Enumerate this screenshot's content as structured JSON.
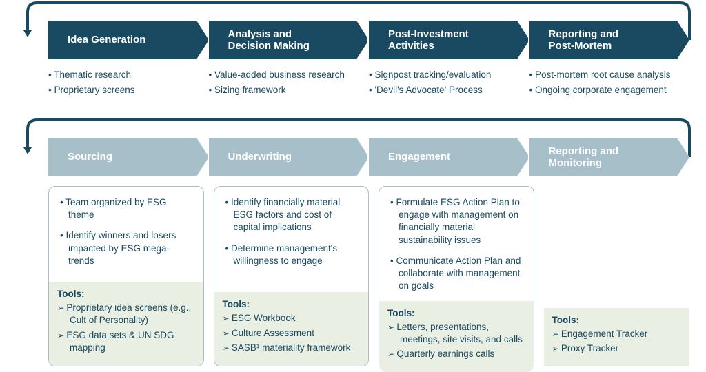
{
  "colors": {
    "dark_chevron": "#1a4a61",
    "light_chevron": "#a7bfc9",
    "text": "#1a4a61",
    "tools_bg": "#e9efe3",
    "page_bg": "#ffffff"
  },
  "row1": {
    "stages": [
      {
        "label": "Idea Generation",
        "bullets": [
          "Thematic research",
          "Proprietary screens"
        ]
      },
      {
        "label": "Analysis and\nDecision Making",
        "bullets": [
          "Value-added business research",
          "Sizing framework"
        ]
      },
      {
        "label": "Post-Investment\nActivities",
        "bullets": [
          "Signpost tracking/evaluation",
          "'Devil's Advocate' Process"
        ]
      },
      {
        "label": "Reporting and\nPost-Mortem",
        "bullets": [
          "Post-mortem root cause analysis",
          "Ongoing corporate engagement"
        ]
      }
    ]
  },
  "row2": {
    "stages": [
      {
        "label": "Sourcing",
        "card_border": true,
        "bullets": [
          "Team organized by ESG theme",
          "Identify winners and losers impacted by ESG mega-trends"
        ],
        "tools": [
          "Proprietary idea screens (e.g., Cult of Personality)",
          "ESG data sets & UN SDG mapping"
        ]
      },
      {
        "label": "Underwriting",
        "card_border": true,
        "bullets": [
          "Identify financially material ESG factors and cost of capital implications",
          "Determine management's willingness to engage"
        ],
        "tools": [
          "ESG Workbook",
          "Culture Assessment",
          "SASB¹ materiality framework"
        ]
      },
      {
        "label": "Engagement",
        "card_border": true,
        "bullets": [
          "Formulate ESG Action Plan to engage with management on financially material sustainability issues",
          "Communicate Action Plan and collaborate with management on goals"
        ],
        "tools": [
          "Letters, presentations, meetings, site visits, and calls",
          "Quarterly earnings calls"
        ]
      },
      {
        "label": "Reporting and\nMonitoring",
        "card_border": false,
        "bullets": [],
        "tools": [
          "Engagement Tracker",
          "Proxy Tracker"
        ]
      }
    ]
  },
  "tools_label": "Tools:",
  "connector": {
    "stroke": "#1a4a61",
    "stroke_width": 4
  }
}
